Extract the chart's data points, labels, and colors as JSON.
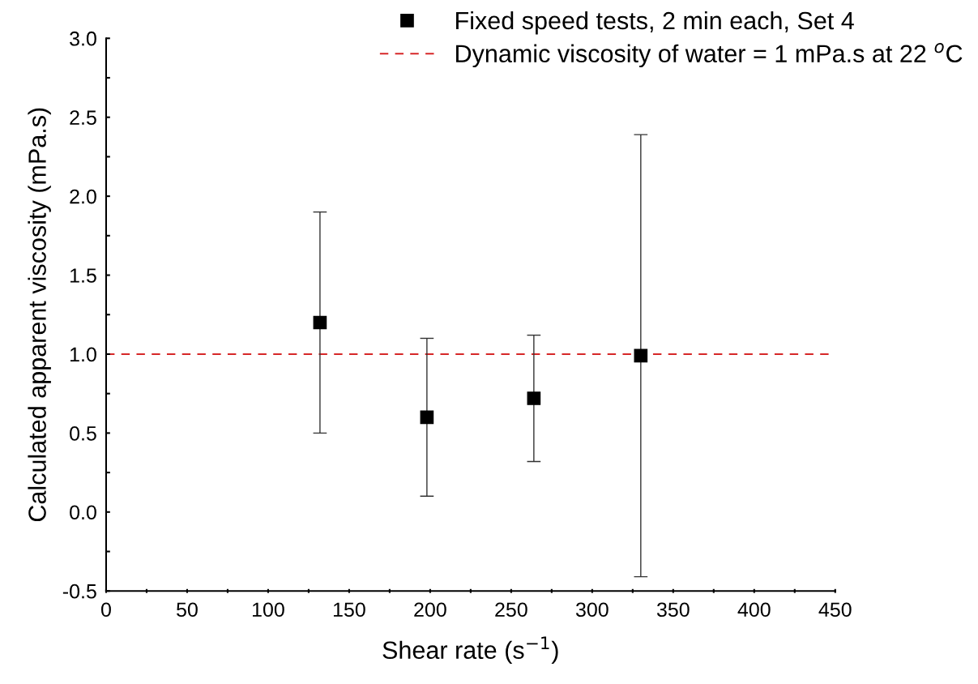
{
  "chart_data": {
    "type": "scatter",
    "xlabel": "Shear rate (s$^{−1}$)",
    "ylabel": "Calculated apparent viscosity (mPa.s)",
    "x": [
      132,
      198,
      264,
      330
    ],
    "series": [
      {
        "name": "Fixed speed tests, 2 min each, Set 4",
        "color": "#000000",
        "values": [
          1.2,
          0.6,
          0.72,
          0.99
        ],
        "errors": [
          0.7,
          0.5,
          0.4,
          1.4
        ]
      }
    ],
    "marker": "square",
    "ref_lines": [
      {
        "axis": "y",
        "value": 1,
        "label": "Dynamic viscosity of water = 1 mPa.s at 22 $^{o}$C",
        "color": "#d62728",
        "line_style": "dashed"
      }
    ],
    "xlim": [
      0,
      450
    ],
    "xticks": [
      0,
      {
        "value": 25,
        "label": null
      },
      50,
      {
        "value": 75,
        "label": null
      },
      100,
      {
        "value": 125,
        "label": null
      },
      150,
      {
        "value": 175,
        "label": null
      },
      200,
      {
        "value": 225,
        "label": null
      },
      250,
      {
        "value": 275,
        "label": null
      },
      300,
      {
        "value": 325,
        "label": null
      },
      350,
      {
        "value": 375,
        "label": null
      },
      400,
      {
        "value": 425,
        "label": null
      },
      450
    ],
    "ylim": [
      -0.5,
      3.0
    ],
    "yticks": [
      {
        "value": -0.5,
        "label": "-0.5"
      },
      {
        "value": -0.25,
        "label": null
      },
      {
        "value": 0,
        "label": "0.0"
      },
      {
        "value": 0.25,
        "label": null
      },
      {
        "value": 0.5,
        "label": "0.5"
      },
      {
        "value": 0.75,
        "label": null
      },
      {
        "value": 1,
        "label": "1.0"
      },
      {
        "value": 1.25,
        "label": null
      },
      {
        "value": 1.5,
        "label": "1.5"
      },
      {
        "value": 1.75,
        "label": null
      },
      {
        "value": 2,
        "label": "2.0"
      },
      {
        "value": 2.25,
        "label": null
      },
      {
        "value": 2.5,
        "label": "2.5"
      },
      {
        "value": 2.75,
        "label": null
      },
      {
        "value": 3,
        "label": "3.0"
      }
    ],
    "grid": false,
    "legend": "top right"
  }
}
